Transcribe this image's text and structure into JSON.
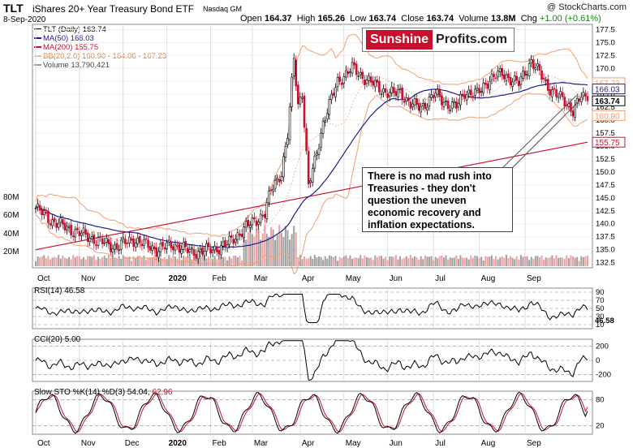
{
  "header": {
    "ticker": "TLT",
    "name": "iShares 20+ Year Treasury Bond ETF",
    "exchange": "Nasdaq GM",
    "copyright": "@ StockCharts.com",
    "date": "8-Sep-2020",
    "open_label": "Open",
    "open": "164.37",
    "high_label": "High",
    "high": "165.26",
    "low_label": "Low",
    "low": "163.74",
    "close_label": "Close",
    "close": "163.74",
    "volume_label": "Volume",
    "volume": "13.8M",
    "chg_label": "Chg",
    "chg": "+1.00 (+0.61%)"
  },
  "legend": {
    "price": "TLT (Daily) 163.74",
    "ma50": "MA(50) 166.03",
    "ma200": "MA(200) 155.75",
    "bb": "BB(20,2.0) 160.90 - 164.06 - 167.23",
    "volume": "Volume 13,790,421"
  },
  "logo": {
    "part1": "Sunshine",
    "part2": "Profits.com"
  },
  "annotation": "There is no mad rush into Treasuries -  they don't question the uneven economic recovery and inflation expectations.",
  "panels": {
    "rsi_label": "RSI(14) 46.58",
    "cci_label": "CCI(20) 5.00",
    "sto_label_main": "Slow STO %K(14) %D(3) 54.04,",
    "sto_label_d": "62.96"
  },
  "colors": {
    "up": "#000000",
    "down": "#c8102e",
    "ma50": "#1c1c8c",
    "ma200": "#c8102e",
    "bb": "#f0a070",
    "volume_up": "#a0a0a0",
    "volume_down": "#f4a0a0",
    "rsi": "#000000",
    "positive_fill": "#3a7d3a",
    "negative_fill": "#8b4040"
  },
  "chart_data": [
    {
      "type": "candlestick",
      "x_labels": [
        "Oct",
        "Nov",
        "Dec",
        "2020",
        "Feb",
        "Mar",
        "Apr",
        "May",
        "Jun",
        "Jul",
        "Aug",
        "Sep"
      ],
      "y_ticks": [
        132.5,
        135.0,
        137.5,
        140.0,
        142.5,
        145.0,
        147.5,
        150.0,
        152.5,
        155.0,
        157.5,
        160.0,
        162.5,
        165.0,
        167.5,
        170.0,
        172.5,
        175.0,
        177.5
      ],
      "ylim": [
        131.5,
        178.5
      ],
      "volume_ticks": [
        "80M",
        "60M",
        "40M",
        "20M"
      ],
      "last_value_tags": [
        {
          "label": "167.23",
          "color": "#f0a070"
        },
        {
          "label": "166.03",
          "color": "#1c1c8c"
        },
        {
          "label": "163.74",
          "color": "#000000"
        },
        {
          "label": "160.90",
          "color": "#f0a070"
        },
        {
          "label": "155.75",
          "color": "#c8102e"
        }
      ],
      "price_anchors": {
        "dates_index": [
          0,
          8,
          16,
          25,
          38,
          47,
          58,
          66,
          75,
          85,
          92,
          100,
          110,
          113,
          118,
          121,
          124,
          126,
          128,
          131,
          134,
          138,
          145,
          152,
          160,
          168,
          172,
          175,
          180,
          185,
          192,
          198,
          202,
          206,
          212,
          218,
          224,
          232,
          238,
          242,
          246,
          250,
          254,
          258,
          262,
          266
        ],
        "close": [
          143,
          140.5,
          139,
          137.5,
          135.5,
          137,
          135,
          136,
          134.5,
          135,
          136,
          139,
          142,
          146.5,
          150,
          157,
          172,
          163,
          165.5,
          147,
          152,
          159.5,
          167.5,
          170,
          167.5,
          165.5,
          165,
          165.5,
          163,
          162.5,
          165,
          163,
          162.5,
          165.5,
          165,
          168,
          169,
          167,
          171.5,
          169,
          166.5,
          165,
          163.5,
          162,
          164.5,
          163.74
        ]
      },
      "ma50_last": 166.03,
      "ma200_last": 155.75,
      "bb_last": {
        "lower": 160.9,
        "mid": 164.06,
        "upper": 167.23
      },
      "volume_last": 13790421
    },
    {
      "type": "line",
      "name": "RSI(14)",
      "last": 46.58,
      "y_ticks": [
        90,
        70,
        50,
        30,
        10
      ],
      "ylim": [
        0,
        100
      ]
    },
    {
      "type": "line",
      "name": "CCI(20)",
      "last": 5.0,
      "y_ticks": [
        200,
        0,
        -200
      ],
      "ylim": [
        -300,
        300
      ]
    },
    {
      "type": "line",
      "name": "Slow STO %K(14) %D(3)",
      "k_last": 54.04,
      "d_last": 62.96,
      "y_ticks": [
        80,
        20
      ],
      "ylim": [
        0,
        100
      ]
    }
  ]
}
